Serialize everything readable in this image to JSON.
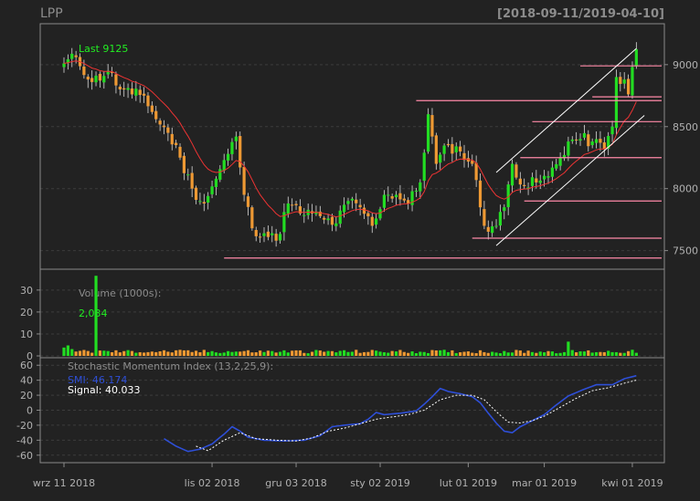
{
  "colors": {
    "background": "#222222",
    "frame": "#8a8a8a",
    "grid": "#3c3c3c",
    "up": "#22dd22",
    "down": "#ee9933",
    "wick": "#d8d8d8",
    "ema": "#ee3333",
    "hline": "#ff8aa8",
    "channel": "#ffffff",
    "smi": "#2e4fd8",
    "signal": "#ffffff",
    "muted_text": "#8c8c8c",
    "axis_text": "#b0b0b0",
    "last_text": "#22ee22"
  },
  "chart_data": [
    {
      "type": "candlestick",
      "title": "LPP",
      "date_range_label": "[2018-09-11/2019-04-10]",
      "last_label": "Last 9125",
      "ylim": [
        7350,
        9330
      ],
      "y_ticks": [
        7500,
        8000,
        8500,
        9000
      ],
      "grid": true,
      "n_bars": 144,
      "close_anchors": [
        [
          0,
          9010
        ],
        [
          3,
          9060
        ],
        [
          7,
          8860
        ],
        [
          11,
          8950
        ],
        [
          14,
          8800
        ],
        [
          17,
          8760
        ],
        [
          20,
          8750
        ],
        [
          23,
          8560
        ],
        [
          26,
          8450
        ],
        [
          29,
          8250
        ],
        [
          32,
          8000
        ],
        [
          35,
          7880
        ],
        [
          38,
          8080
        ],
        [
          41,
          8280
        ],
        [
          43,
          8420
        ],
        [
          45,
          7950
        ],
        [
          47,
          7680
        ],
        [
          50,
          7640
        ],
        [
          53,
          7580
        ],
        [
          56,
          7880
        ],
        [
          59,
          7800
        ],
        [
          62,
          7800
        ],
        [
          65,
          7750
        ],
        [
          68,
          7720
        ],
        [
          71,
          7900
        ],
        [
          74,
          7850
        ],
        [
          77,
          7700
        ],
        [
          80,
          7950
        ],
        [
          83,
          7950
        ],
        [
          86,
          7880
        ],
        [
          89,
          8050
        ],
        [
          91,
          8600
        ],
        [
          93,
          8200
        ],
        [
          96,
          8350
        ],
        [
          99,
          8300
        ],
        [
          102,
          8200
        ],
        [
          105,
          7700
        ],
        [
          108,
          7700
        ],
        [
          110,
          7850
        ],
        [
          112,
          8200
        ],
        [
          115,
          8020
        ],
        [
          118,
          8050
        ],
        [
          121,
          8100
        ],
        [
          124,
          8250
        ],
        [
          126,
          8380
        ],
        [
          129,
          8400
        ],
        [
          132,
          8380
        ],
        [
          135,
          8320
        ],
        [
          137,
          8500
        ],
        [
          138,
          8900
        ],
        [
          140,
          8880
        ],
        [
          141,
          8760
        ],
        [
          143,
          9125
        ]
      ],
      "volume": {
        "label": "Volume (1000s):",
        "last_label": "2,034",
        "ylim": [
          0,
          37
        ],
        "y_ticks": [
          0,
          10,
          20,
          30
        ],
        "spike": {
          "bar": 8,
          "value": 36.5
        },
        "spike2": {
          "bar": 126,
          "value": 6.5
        }
      },
      "indicator": {
        "title": "Stochastic Momentum Index (13,2,25,9):",
        "smi_label": "SMI: 46.174",
        "signal_label": "Signal: 40.033",
        "ylim": [
          -70,
          70
        ],
        "y_ticks": [
          -60,
          -40,
          -20,
          0,
          20,
          40,
          60
        ],
        "smi_anchors": [
          [
            25,
            -38
          ],
          [
            28,
            -48
          ],
          [
            31,
            -55
          ],
          [
            34,
            -52
          ],
          [
            37,
            -45
          ],
          [
            40,
            -32
          ],
          [
            42,
            -22
          ],
          [
            44,
            -28
          ],
          [
            46,
            -36
          ],
          [
            50,
            -40
          ],
          [
            55,
            -41
          ],
          [
            60,
            -40
          ],
          [
            64,
            -34
          ],
          [
            67,
            -22
          ],
          [
            70,
            -20
          ],
          [
            74,
            -18
          ],
          [
            76,
            -12
          ],
          [
            78,
            -3
          ],
          [
            80,
            -6
          ],
          [
            84,
            -4
          ],
          [
            88,
            -1
          ],
          [
            90,
            8
          ],
          [
            92,
            18
          ],
          [
            94,
            29
          ],
          [
            96,
            25
          ],
          [
            99,
            22
          ],
          [
            102,
            18
          ],
          [
            104,
            10
          ],
          [
            106,
            -4
          ],
          [
            108,
            -17
          ],
          [
            110,
            -28
          ],
          [
            112,
            -30
          ],
          [
            114,
            -22
          ],
          [
            117,
            -14
          ],
          [
            120,
            -6
          ],
          [
            123,
            7
          ],
          [
            126,
            19
          ],
          [
            130,
            28
          ],
          [
            133,
            34
          ],
          [
            137,
            34
          ],
          [
            140,
            42
          ],
          [
            143,
            46
          ]
        ],
        "signal_anchors": [
          [
            33,
            -48
          ],
          [
            36,
            -54
          ],
          [
            40,
            -40
          ],
          [
            44,
            -30
          ],
          [
            48,
            -38
          ],
          [
            53,
            -40
          ],
          [
            58,
            -41
          ],
          [
            62,
            -37
          ],
          [
            66,
            -28
          ],
          [
            70,
            -24
          ],
          [
            74,
            -18
          ],
          [
            78,
            -12
          ],
          [
            82,
            -9
          ],
          [
            86,
            -6
          ],
          [
            90,
            0
          ],
          [
            94,
            14
          ],
          [
            98,
            20
          ],
          [
            102,
            20
          ],
          [
            105,
            14
          ],
          [
            108,
            -2
          ],
          [
            111,
            -16
          ],
          [
            114,
            -17
          ],
          [
            117,
            -14
          ],
          [
            120,
            -8
          ],
          [
            124,
            4
          ],
          [
            128,
            16
          ],
          [
            132,
            26
          ],
          [
            136,
            30
          ],
          [
            140,
            36
          ],
          [
            143,
            40
          ]
        ]
      },
      "x_axis": {
        "tick_labels": [
          "wrz 11 2018",
          "lis 02 2018",
          "gru 03 2018",
          "sty 02 2019",
          "lut 01 2019",
          "mar 01 2019",
          "kwi 01 2019"
        ],
        "tick_bars": [
          0,
          37,
          58,
          79,
          101,
          120,
          142
        ]
      },
      "horizontal_lines": [
        {
          "y": 7440,
          "from_bar": 40
        },
        {
          "y": 7600,
          "from_bar": 102
        },
        {
          "y": 7900,
          "from_bar": 115
        },
        {
          "y": 8250,
          "from_bar": 114
        },
        {
          "y": 8540,
          "from_bar": 117
        },
        {
          "y": 8710,
          "from_bar": 88
        },
        {
          "y": 8740,
          "from_bar": 132
        },
        {
          "y": 8990,
          "from_bar": 129
        }
      ],
      "channel": {
        "upper": {
          "from": [
            108,
            8130
          ],
          "to": [
            143,
            9130
          ]
        },
        "lower": {
          "from": [
            108,
            7540
          ],
          "to": [
            145,
            8590
          ]
        }
      }
    }
  ]
}
